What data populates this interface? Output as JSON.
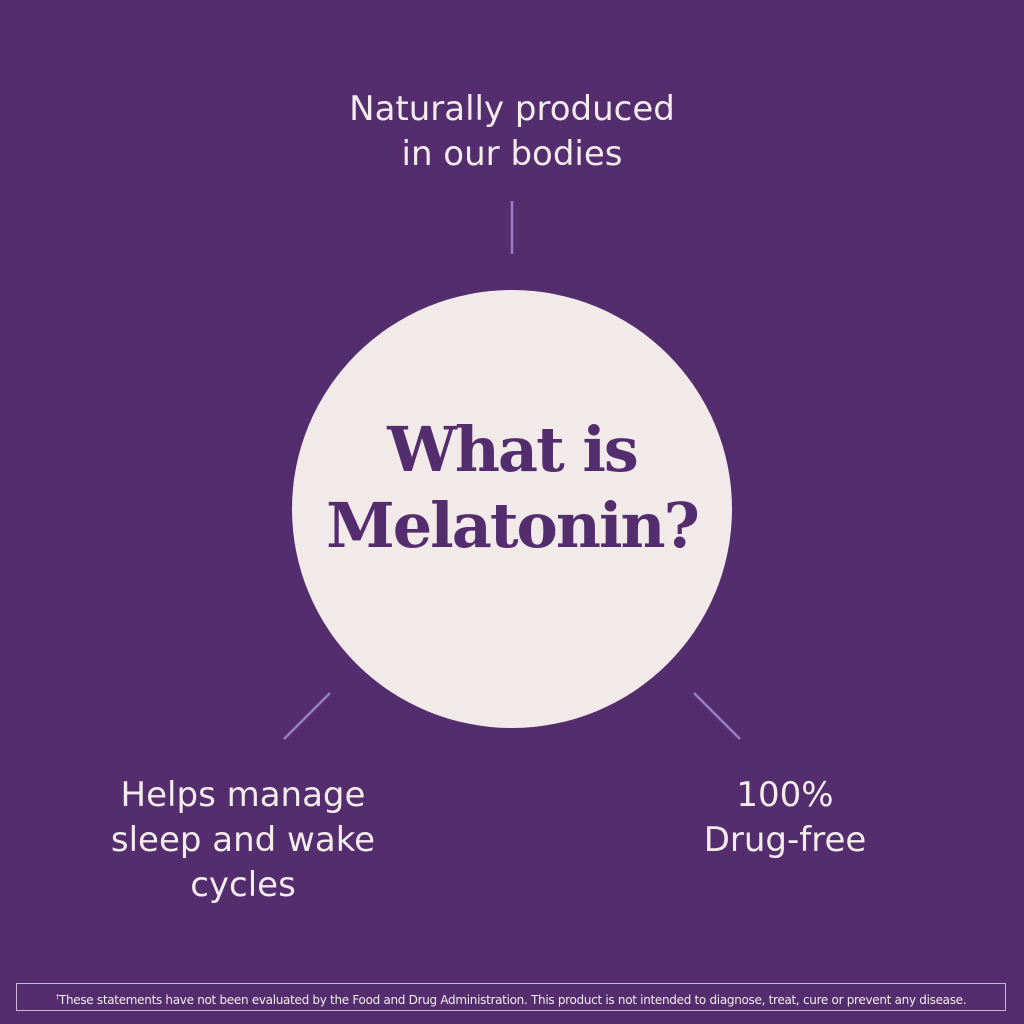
{
  "colors": {
    "background": "#532d6d",
    "circle": "#f2eae8",
    "connector": "#9a7fc4",
    "text": "#f3ecea"
  },
  "top_fact": {
    "lines": [
      "Naturally produced",
      "in our bodies"
    ]
  },
  "left_fact": {
    "lines": [
      "Helps manage",
      "sleep and wake",
      "cycles"
    ]
  },
  "right_fact": {
    "lines": [
      "100%",
      "Drug-free"
    ]
  },
  "title": {
    "lines": [
      "What is",
      "Melatonin?"
    ]
  },
  "footer": {
    "marker": "†",
    "text": "These statements have not been evaluated by the Food and Drug Administration. This product is not intended to diagnose, treat, cure or prevent any disease."
  }
}
